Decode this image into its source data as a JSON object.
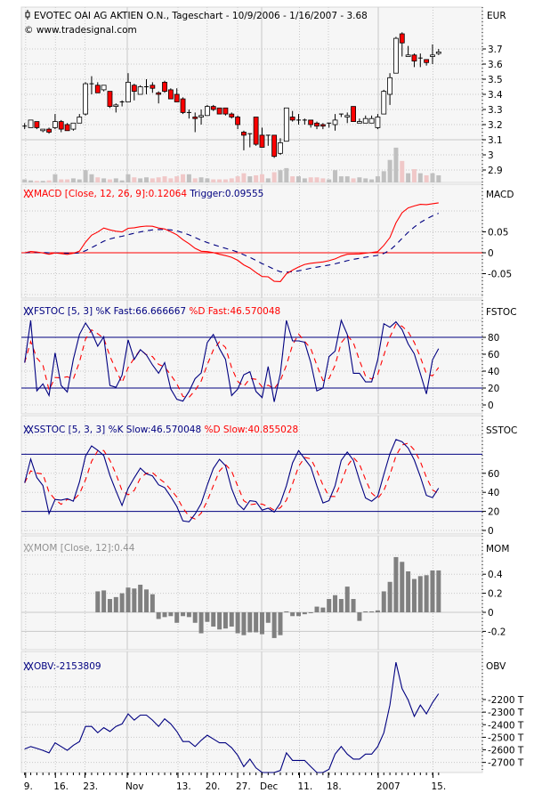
{
  "chart_data": {
    "type": "candlestick",
    "title": "EVOTEC OAI AG AKTIEN O.N., Tageschart - 10/9/2006 - 1/16/2007 - 3.68",
    "copyright": "© www.tradesignal.com",
    "currency_label": "EUR",
    "colors": {
      "up": "#ffffff",
      "down": "#ff0000",
      "vol_up": "#c0c0c0",
      "vol_down": "#f0c8c8",
      "navy": "#000080",
      "red": "#ff0000",
      "grid": "#c8c8c8",
      "panel_bg": "#f6f6f6"
    },
    "price_ticks": [
      "2.9",
      "3",
      "3.1",
      "3.2",
      "3.3",
      "3.4",
      "3.5",
      "3.6",
      "3.7"
    ],
    "x_labels": [
      "9.",
      "16.",
      "23.",
      "Nov",
      "13.",
      "20.",
      "27.",
      "Dec",
      "11.",
      "18.",
      "2007",
      "15."
    ],
    "ohlcv_fields": [
      "open",
      "high",
      "low",
      "close",
      "volume_thousands"
    ],
    "ohlcv": [
      [
        3.19,
        3.21,
        3.17,
        3.19,
        30
      ],
      [
        3.18,
        3.23,
        3.18,
        3.23,
        20
      ],
      [
        3.22,
        3.22,
        3.17,
        3.18,
        15
      ],
      [
        3.16,
        3.17,
        3.15,
        3.17,
        15
      ],
      [
        3.17,
        3.18,
        3.14,
        3.15,
        20
      ],
      [
        3.18,
        3.27,
        3.17,
        3.22,
        80
      ],
      [
        3.22,
        3.23,
        3.15,
        3.17,
        30
      ],
      [
        3.2,
        3.21,
        3.16,
        3.16,
        30
      ],
      [
        3.17,
        3.21,
        3.16,
        3.21,
        40
      ],
      [
        3.21,
        3.27,
        3.21,
        3.25,
        30
      ],
      [
        3.27,
        3.48,
        3.26,
        3.47,
        120
      ],
      [
        3.47,
        3.52,
        3.4,
        3.47,
        80
      ],
      [
        3.46,
        3.48,
        3.41,
        3.41,
        50
      ],
      [
        3.43,
        3.46,
        3.42,
        3.46,
        40
      ],
      [
        3.42,
        3.42,
        3.31,
        3.32,
        30
      ],
      [
        3.32,
        3.34,
        3.28,
        3.33,
        40
      ],
      [
        3.35,
        3.36,
        3.32,
        3.35,
        20
      ],
      [
        3.35,
        3.54,
        3.35,
        3.48,
        80
      ],
      [
        3.46,
        3.47,
        3.36,
        3.42,
        50
      ],
      [
        3.4,
        3.46,
        3.4,
        3.45,
        40
      ],
      [
        3.45,
        3.5,
        3.4,
        3.45,
        50
      ],
      [
        3.46,
        3.48,
        3.41,
        3.44,
        40
      ],
      [
        3.41,
        3.42,
        3.34,
        3.4,
        50
      ],
      [
        3.48,
        3.49,
        3.41,
        3.42,
        60
      ],
      [
        3.43,
        3.44,
        3.37,
        3.37,
        40
      ],
      [
        3.4,
        3.44,
        3.35,
        3.35,
        60
      ],
      [
        3.37,
        3.38,
        3.27,
        3.28,
        80
      ],
      [
        3.28,
        3.3,
        3.24,
        3.28,
        80
      ],
      [
        3.25,
        3.28,
        3.15,
        3.24,
        40
      ],
      [
        3.25,
        3.3,
        3.2,
        3.26,
        50
      ],
      [
        3.26,
        3.33,
        3.26,
        3.32,
        40
      ],
      [
        3.32,
        3.33,
        3.29,
        3.3,
        30
      ],
      [
        3.31,
        3.31,
        3.27,
        3.27,
        30
      ],
      [
        3.31,
        3.31,
        3.26,
        3.27,
        30
      ],
      [
        3.27,
        3.28,
        3.24,
        3.25,
        40
      ],
      [
        3.25,
        3.26,
        3.17,
        3.2,
        60
      ],
      [
        3.15,
        3.16,
        3.03,
        3.13,
        90
      ],
      [
        3.14,
        3.14,
        3.05,
        3.14,
        60
      ],
      [
        3.25,
        3.25,
        3.06,
        3.07,
        70
      ],
      [
        3.13,
        3.18,
        3.05,
        3.05,
        80
      ],
      [
        3.13,
        3.13,
        3.06,
        3.13,
        40
      ],
      [
        3.13,
        3.13,
        2.98,
        2.99,
        100
      ],
      [
        3.01,
        3.11,
        3.0,
        3.08,
        120
      ],
      [
        3.09,
        3.31,
        3.09,
        3.31,
        140
      ],
      [
        3.25,
        3.29,
        3.22,
        3.23,
        60
      ],
      [
        3.23,
        3.27,
        3.2,
        3.23,
        60
      ],
      [
        3.23,
        3.24,
        3.2,
        3.23,
        40
      ],
      [
        3.23,
        3.23,
        3.18,
        3.2,
        50
      ],
      [
        3.21,
        3.22,
        3.17,
        3.19,
        50
      ],
      [
        3.2,
        3.21,
        3.17,
        3.19,
        40
      ],
      [
        3.21,
        3.21,
        3.18,
        3.21,
        30
      ],
      [
        3.2,
        3.27,
        3.16,
        3.23,
        120
      ],
      [
        3.27,
        3.27,
        3.25,
        3.27,
        60
      ],
      [
        3.25,
        3.28,
        3.21,
        3.26,
        60
      ],
      [
        3.32,
        3.32,
        3.22,
        3.22,
        40
      ],
      [
        3.21,
        3.24,
        3.21,
        3.22,
        50
      ],
      [
        3.21,
        3.26,
        3.21,
        3.24,
        40
      ],
      [
        3.21,
        3.26,
        3.21,
        3.24,
        30
      ],
      [
        3.18,
        3.27,
        3.17,
        3.25,
        60
      ],
      [
        3.27,
        3.43,
        3.27,
        3.42,
        110
      ],
      [
        3.4,
        3.54,
        3.33,
        3.51,
        220
      ],
      [
        3.54,
        3.78,
        3.54,
        3.77,
        340
      ],
      [
        3.8,
        3.81,
        3.65,
        3.74,
        210
      ],
      [
        3.65,
        3.72,
        3.65,
        3.66,
        90
      ],
      [
        3.66,
        3.67,
        3.58,
        3.62,
        130
      ],
      [
        3.64,
        3.67,
        3.58,
        3.64,
        90
      ],
      [
        3.63,
        3.63,
        3.59,
        3.61,
        70
      ],
      [
        3.65,
        3.73,
        3.6,
        3.66,
        90
      ],
      [
        3.67,
        3.7,
        3.66,
        3.68,
        70
      ]
    ],
    "indicators": {
      "macd": {
        "axis_label": "MACD",
        "legend_main": "MACD [Close, 12, 26, 9]:0.12064",
        "legend_trigger": "Trigger:0.09555",
        "ticks": [
          "0.05",
          "0",
          "-0.05"
        ]
      },
      "fstoc": {
        "axis_label": "FSTOC",
        "legend_k": "FSTOC [5, 3] %K Fast:66.666667",
        "legend_d": "%D Fast:46.570048",
        "ticks": [
          "80",
          "60",
          "40",
          "20",
          "0"
        ]
      },
      "sstoc": {
        "axis_label": "SSTOC",
        "legend_k": "SSTOC [5, 3, 3] %K Slow:46.570048",
        "legend_d": "%D Slow:40.855028",
        "ticks": [
          "60",
          "40",
          "20",
          "0"
        ]
      },
      "mom": {
        "axis_label": "MOM",
        "legend": "MOM [Close, 12]:0.44",
        "ticks": [
          "0.4",
          "0.2",
          "0",
          "-0.2"
        ]
      },
      "obv": {
        "axis_label": "OBV",
        "legend": "OBV:-2153809",
        "last_value": -2153809,
        "ticks": [
          "-2200 T",
          "-2300 T",
          "-2400 T",
          "-2500 T",
          "-2600 T",
          "-2700 T"
        ]
      }
    }
  }
}
